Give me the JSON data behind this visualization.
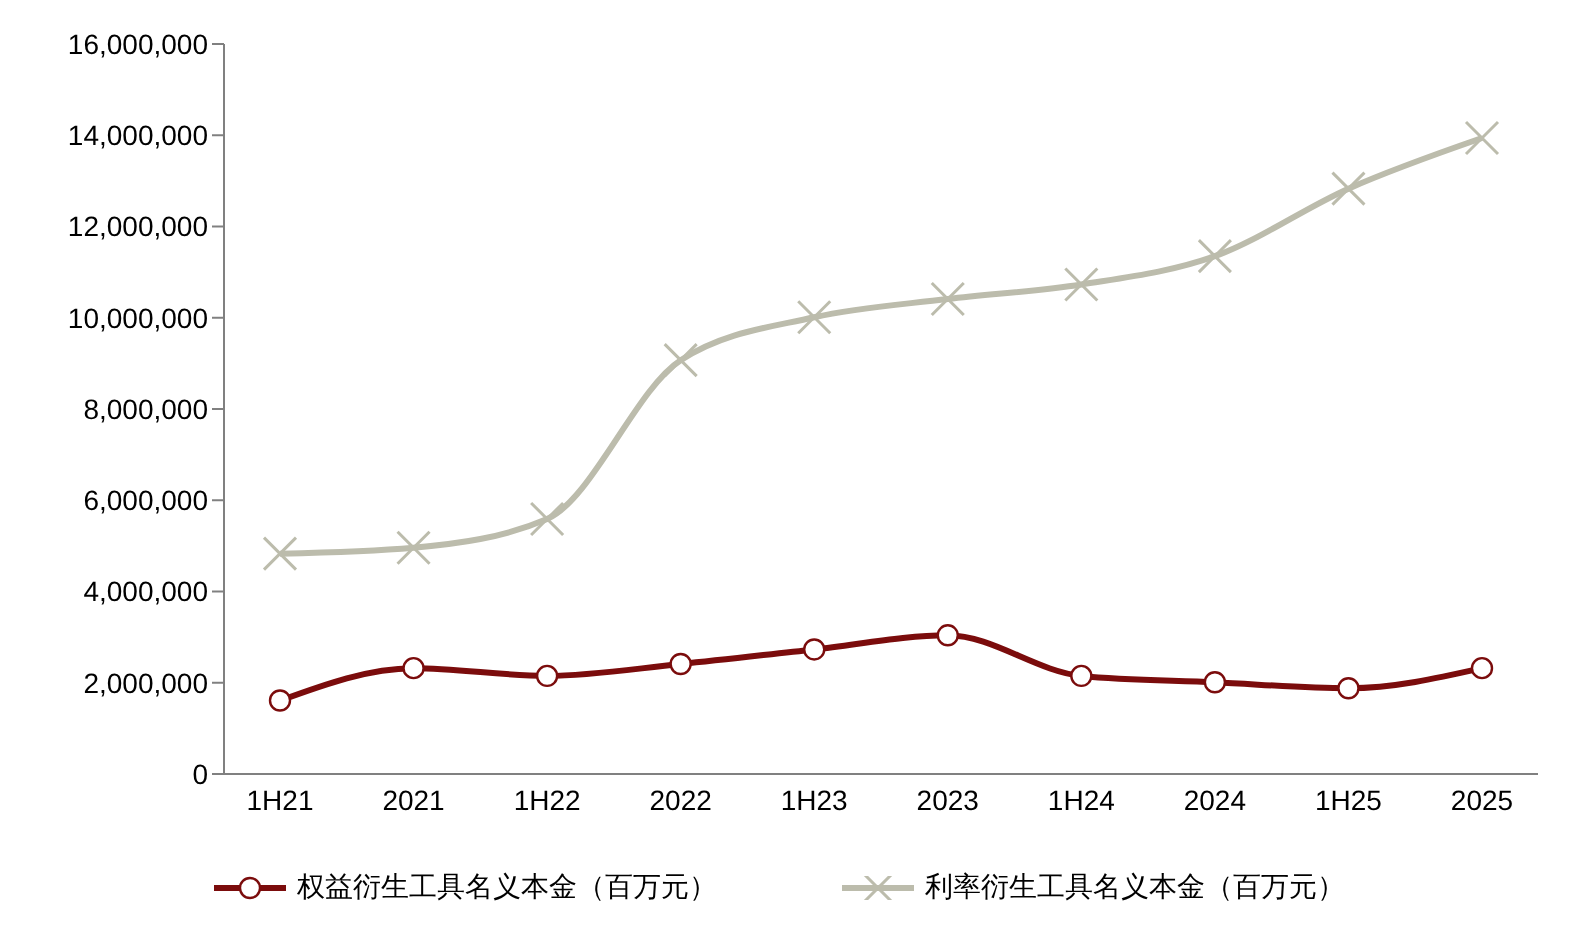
{
  "chart_data": {
    "type": "line",
    "categories": [
      "1H21",
      "2021",
      "1H22",
      "2022",
      "1H23",
      "2023",
      "1H24",
      "2024",
      "1H25",
      "2025"
    ],
    "series": [
      {
        "name": "权益衍生工具名义本金（百万元）",
        "color": "#7b0c0c",
        "marker": "circle",
        "values": [
          1610000,
          2320000,
          2150000,
          2410000,
          2730000,
          3040000,
          2150000,
          2010000,
          1880000,
          2320000
        ]
      },
      {
        "name": "利率衍生工具名义本金（百万元）",
        "color": "#bcbcac",
        "marker": "cross",
        "values": [
          4830000,
          4960000,
          5590000,
          9070000,
          10010000,
          10410000,
          10730000,
          11350000,
          12830000,
          13940000
        ]
      }
    ],
    "ylim": [
      0,
      16000000
    ],
    "yticks": [
      0,
      {
        "value": 2000000,
        "label": "2,000,000"
      },
      {
        "value": 4000000,
        "label": "4,000,000"
      },
      {
        "value": 6000000,
        "label": "6,000,000"
      },
      {
        "value": 8000000,
        "label": "8,000,000"
      },
      {
        "value": 10000000,
        "label": "10,000,000"
      },
      {
        "value": 12000000,
        "label": "12,000,000"
      },
      {
        "value": 14000000,
        "label": "14,000,000"
      },
      {
        "value": 16000000,
        "label": "16,000,000"
      }
    ],
    "grid": false,
    "legend": "bottom"
  }
}
